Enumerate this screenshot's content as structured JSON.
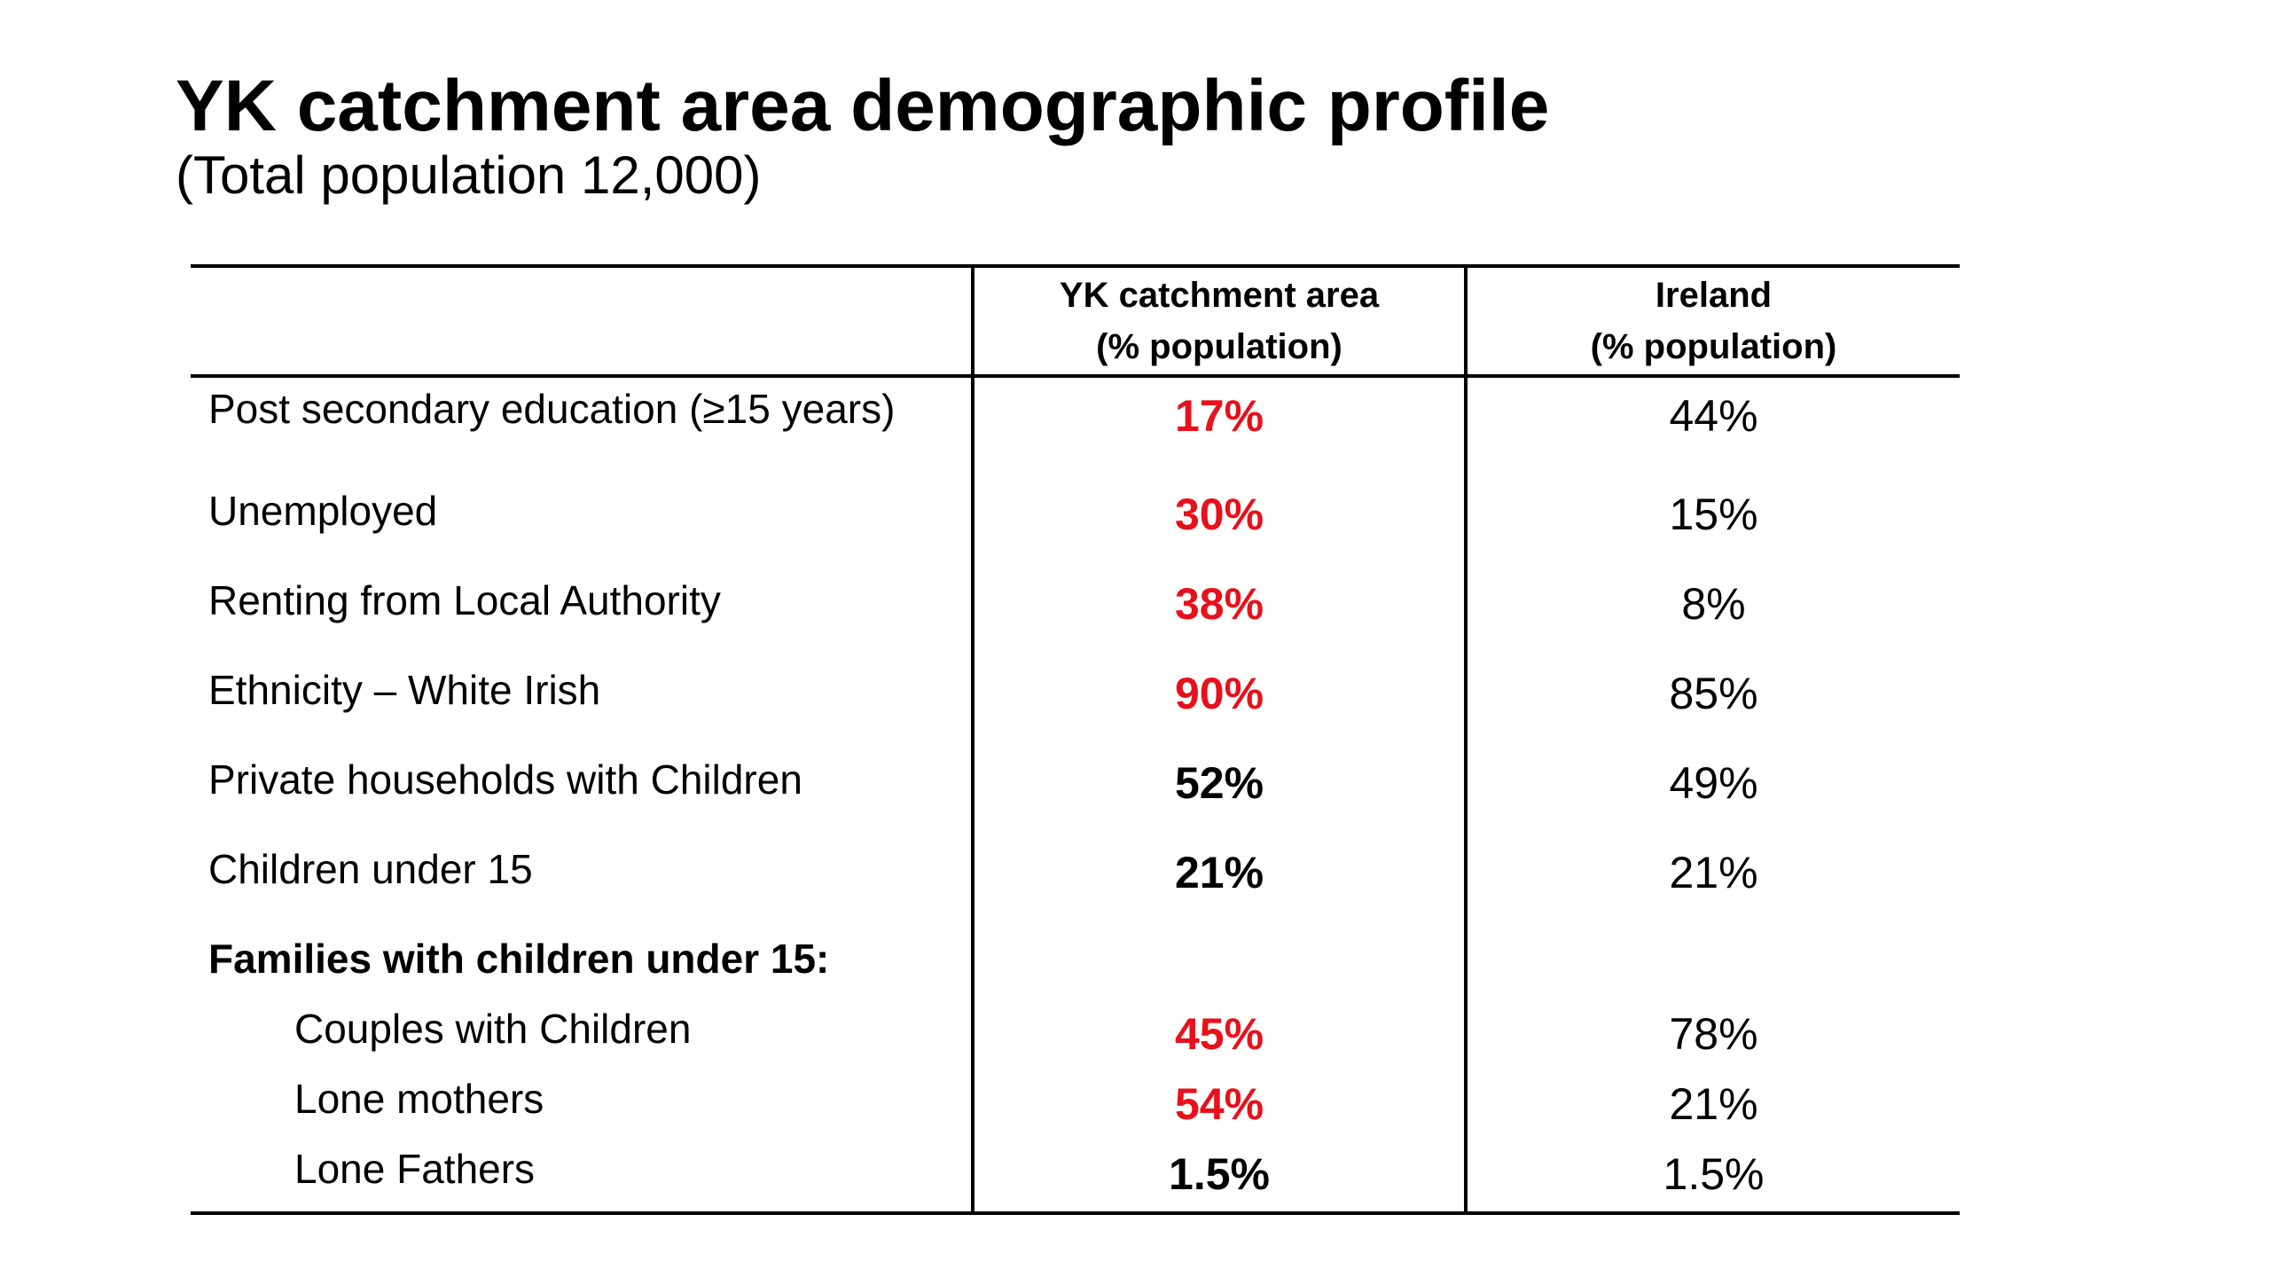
{
  "title": "YK catchment area demographic profile",
  "subtitle": "(Total population 12,000)",
  "table": {
    "headers": {
      "col1": "",
      "col2_line1": "YK catchment area",
      "col2_line2": "(% population)",
      "col3_line1": "Ireland",
      "col3_line2": "(% population)"
    },
    "rows": [
      {
        "label": "Post secondary education (≥15 years)",
        "yk": "17%",
        "ireland": "44%",
        "highlight": true
      },
      {
        "label": "Unemployed",
        "yk": "30%",
        "ireland": "15%",
        "highlight": true
      },
      {
        "label": "Renting from Local Authority",
        "yk": "38%",
        "ireland": "8%",
        "highlight": true
      },
      {
        "label": "Ethnicity – White Irish",
        "yk": "90%",
        "ireland": "85%",
        "highlight": true
      },
      {
        "label": "Private households with Children",
        "yk": "52%",
        "ireland": "49%",
        "highlight": false
      },
      {
        "label": "Children under 15",
        "yk": "21%",
        "ireland": "21%",
        "highlight": false
      },
      {
        "label": "Families with children under 15:",
        "yk": "",
        "ireland": "",
        "highlight": false
      },
      {
        "label": "Couples with Children",
        "yk": "45%",
        "ireland": "78%",
        "highlight": true
      },
      {
        "label": "Lone mothers",
        "yk": "54%",
        "ireland": "21%",
        "highlight": true
      },
      {
        "label": "Lone Fathers",
        "yk": "1.5%",
        "ireland": "1.5%",
        "highlight": false
      }
    ]
  },
  "colors": {
    "highlight": "#e8101a",
    "text": "#000000"
  }
}
